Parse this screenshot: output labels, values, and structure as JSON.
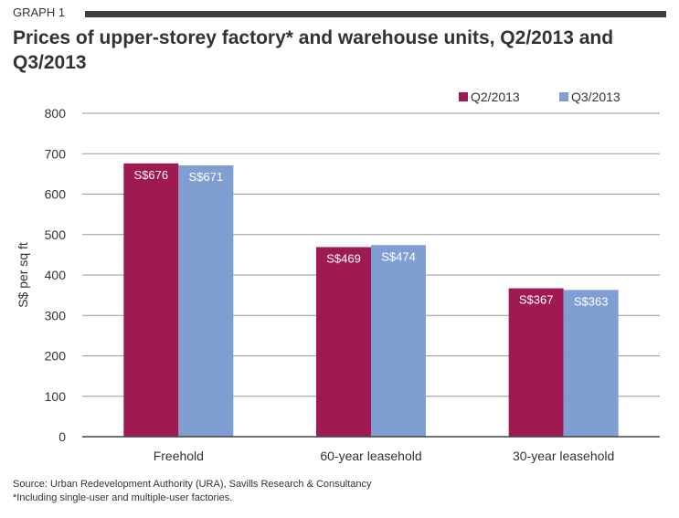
{
  "header": {
    "graph_label": "GRAPH 1",
    "title": "Prices of upper-storey factory* and warehouse units, Q2/2013 and Q3/2013"
  },
  "footer": {
    "source": "Source: Urban Redevelopment Authority (URA), Savills Research & Consultancy",
    "note": "*Including single-user and multiple-user factories."
  },
  "colors": {
    "q2": "#9e1a50",
    "q3": "#7f9fd3",
    "grid": "#999999",
    "axis": "#444444"
  },
  "chart_data": {
    "type": "bar",
    "title": "Prices of upper-storey factory* and warehouse units, Q2/2013 and Q3/2013",
    "ylabel": "S$ per sq ft",
    "xlabel": "",
    "ylim": [
      0,
      800
    ],
    "yticks": [
      0,
      100,
      200,
      300,
      400,
      500,
      600,
      700,
      800
    ],
    "grid": true,
    "legend": "top-right",
    "categories": [
      "Freehold",
      "60-year leasehold",
      "30-year leasehold"
    ],
    "series": [
      {
        "name": "Q2/2013",
        "values": [
          676,
          469,
          367
        ],
        "labels": [
          "S$676",
          "S$469",
          "S$367"
        ]
      },
      {
        "name": "Q3/2013",
        "values": [
          671,
          474,
          363
        ],
        "labels": [
          "S$671",
          "S$474",
          "S$363"
        ]
      }
    ]
  }
}
